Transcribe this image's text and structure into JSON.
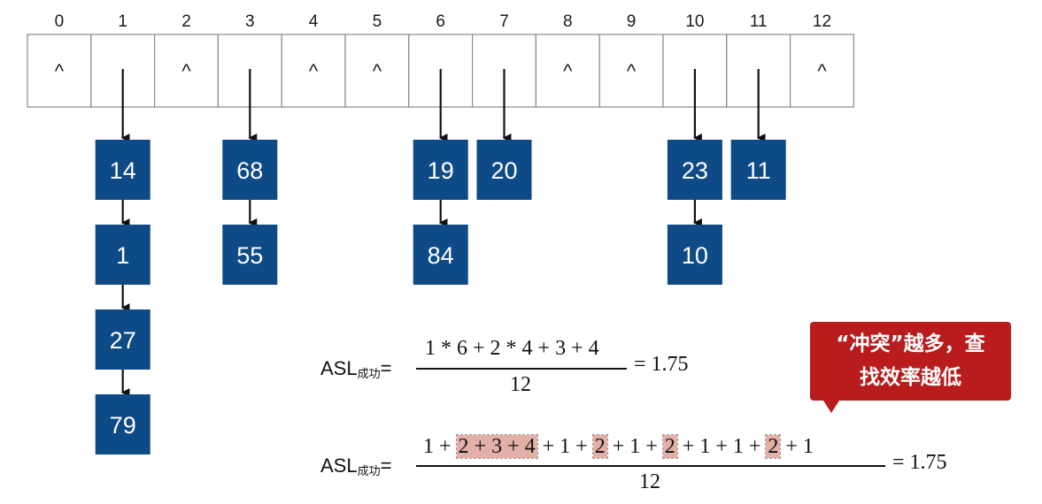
{
  "indices": [
    "0",
    "1",
    "2",
    "3",
    "4",
    "5",
    "6",
    "7",
    "8",
    "9",
    "10",
    "11",
    "12"
  ],
  "empty_marker": "^",
  "slots": [
    {
      "empty": true
    },
    {
      "empty": false,
      "chain": [
        "14",
        "1",
        "27",
        "79"
      ]
    },
    {
      "empty": true
    },
    {
      "empty": false,
      "chain": [
        "68",
        "55"
      ]
    },
    {
      "empty": true
    },
    {
      "empty": true
    },
    {
      "empty": false,
      "chain": [
        "19",
        "84"
      ]
    },
    {
      "empty": false,
      "chain": [
        "20"
      ]
    },
    {
      "empty": true
    },
    {
      "empty": true
    },
    {
      "empty": false,
      "chain": [
        "23",
        "10"
      ]
    },
    {
      "empty": false,
      "chain": [
        "11"
      ]
    },
    {
      "empty": true
    }
  ],
  "formula1": {
    "label": "ASL",
    "label_sub": "成功",
    "eq": "=",
    "numerator": "1 * 6 + 2 * 4 + 3 + 4",
    "denominator": "12",
    "result": "= 1.75"
  },
  "formula2": {
    "label": "ASL",
    "label_sub": "成功",
    "eq": "=",
    "terms": {
      "t1": "1 + ",
      "h1": "2 + 3 + 4",
      "t2": " + 1 + ",
      "h2": "2",
      "t3": " + 1 + ",
      "h3": "2",
      "t4": " + 1 + 1 + ",
      "h4": "2",
      "t5": " + 1"
    },
    "denominator": "12",
    "result": "= 1.75"
  },
  "callout": {
    "line1": "“冲突”越多，查",
    "line2": "找效率越低"
  },
  "colors": {
    "node": "#0e4a86",
    "highlight": "#e3b0a8",
    "callout": "#b81c1c"
  }
}
